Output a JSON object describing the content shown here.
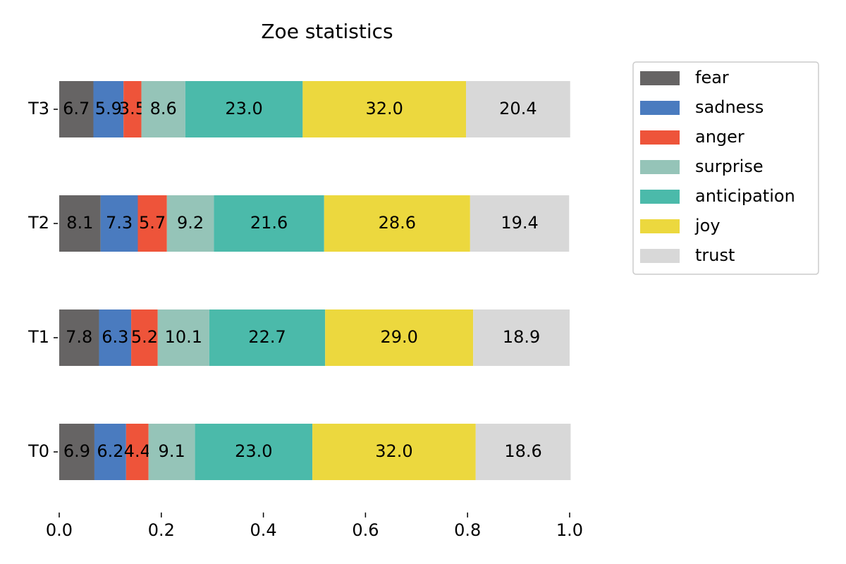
{
  "chart_data": {
    "type": "stacked-bar-horizontal",
    "title": "Zoe statistics",
    "categories": [
      "T0",
      "T1",
      "T2",
      "T3"
    ],
    "series": [
      {
        "name": "fear",
        "color": "#666464",
        "values": [
          0.069,
          0.078,
          0.081,
          0.067
        ],
        "value_labels": [
          "6.9",
          "7.8",
          "8.1",
          "6.7"
        ]
      },
      {
        "name": "sadness",
        "color": "#4a7bbf",
        "values": [
          0.062,
          0.063,
          0.073,
          0.059
        ],
        "value_labels": [
          "6.2",
          "6.3",
          "7.3",
          "5.9"
        ]
      },
      {
        "name": "anger",
        "color": "#ee543a",
        "values": [
          0.044,
          0.052,
          0.057,
          0.035
        ],
        "value_labels": [
          "4.4",
          "5.2",
          "5.7",
          "3.5"
        ]
      },
      {
        "name": "surprise",
        "color": "#95c4b8",
        "values": [
          0.091,
          0.101,
          0.092,
          0.086
        ],
        "value_labels": [
          "9.1",
          "10.1",
          "9.2",
          "8.6"
        ]
      },
      {
        "name": "anticipation",
        "color": "#4bbaaa",
        "values": [
          0.23,
          0.227,
          0.216,
          0.23
        ],
        "value_labels": [
          "23.0",
          "22.7",
          "21.6",
          "23.0"
        ]
      },
      {
        "name": "joy",
        "color": "#ecd83e",
        "values": [
          0.32,
          0.29,
          0.286,
          0.32
        ],
        "value_labels": [
          "32.0",
          "29.0",
          "28.6",
          "32.0"
        ]
      },
      {
        "name": "trust",
        "color": "#d8d8d8",
        "values": [
          0.186,
          0.189,
          0.194,
          0.204
        ],
        "value_labels": [
          "18.6",
          "18.9",
          "19.4",
          "20.4"
        ]
      }
    ],
    "xlim": [
      0,
      1
    ],
    "xticks": [
      {
        "value": 0,
        "label": "0.0"
      },
      {
        "value": 0.2,
        "label": "0.2"
      },
      {
        "value": 0.4,
        "label": "0.4"
      },
      {
        "value": 0.6,
        "label": "0.6"
      },
      {
        "value": 0.8,
        "label": "0.8"
      },
      {
        "value": 1,
        "label": "1.0"
      }
    ],
    "legend": "outside-right"
  }
}
